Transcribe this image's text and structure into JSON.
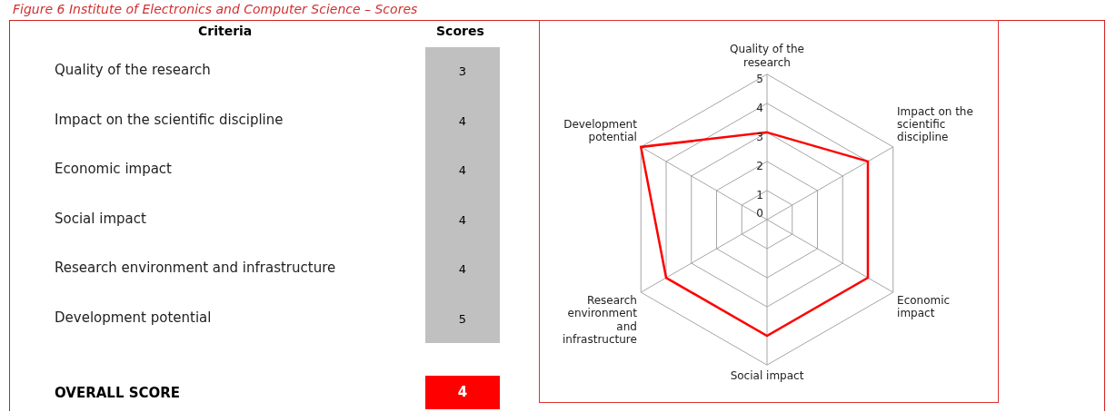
{
  "chart_data": [
    {
      "type": "other",
      "title": "Figure 6 Institute of Electronics and Computer Science – Scores",
      "annotations": [
        "Criteria",
        "Scores",
        "Quality of the research",
        "3",
        "Impact on the scientific discipline",
        "4",
        "Economic impact",
        "4",
        "Social impact",
        "4",
        "Research environment and infrastructure",
        "4",
        "Development potential",
        "5",
        "OVERALL SCORE",
        "4"
      ]
    },
    {
      "type": "radar",
      "categories": [
        "Quality of the research",
        "Impact on the scientific discipline",
        "Economic impact",
        "Social impact",
        "Research environment and infrastructure",
        "Development potential"
      ],
      "series": [
        {
          "color": "#ff0000",
          "values": [
            3,
            4,
            4,
            4,
            4,
            5
          ]
        }
      ],
      "ylim": [
        0,
        5
      ],
      "yticks": [
        0,
        1,
        2,
        3,
        4,
        5
      ],
      "grid": true,
      "legend": false
    }
  ]
}
